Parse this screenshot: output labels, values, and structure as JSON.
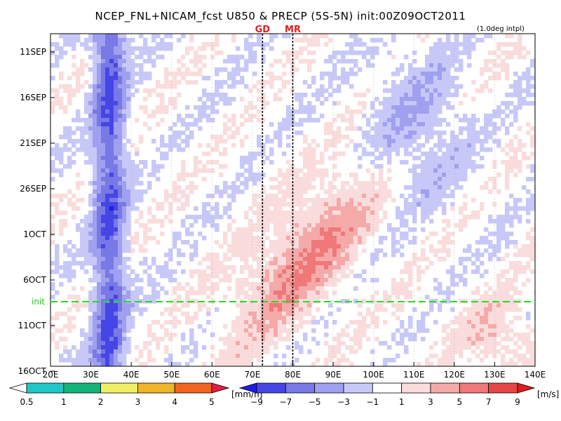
{
  "chart_data": {
    "type": "heatmap",
    "title": "NCEP_FNL+NICAM_fcst U850 & PRECP (5S-5N) init:00Z09OCT2011",
    "note": "(1.0deg intpl)",
    "x_ticks": [
      "20E",
      "30E",
      "40E",
      "50E",
      "60E",
      "70E",
      "80E",
      "90E",
      "100E",
      "110E",
      "120E",
      "130E",
      "140E"
    ],
    "x_range": [
      20,
      140
    ],
    "y_ticks": [
      "11SEP",
      "16SEP",
      "21SEP",
      "26SEP",
      "1OCT",
      "6OCT",
      "11OCT",
      "16OCT"
    ],
    "y_range_days": [
      0,
      35
    ],
    "init_label": "init",
    "init_day": 28,
    "markers": [
      {
        "label": "GD",
        "lon": 72.5
      },
      {
        "label": "MR",
        "lon": 80
      }
    ],
    "precip_colorbar": {
      "levels": [
        "0.5",
        "1",
        "2",
        "3",
        "4",
        "5"
      ],
      "unit": "[mm/h]",
      "colors": [
        "#ffffff",
        "#1ec8c8",
        "#14b478",
        "#f0f064",
        "#f0b428",
        "#f0641e",
        "#e61e46"
      ]
    },
    "wind_colorbar": {
      "levels": [
        "−9",
        "−7",
        "−5",
        "−3",
        "−1",
        "1",
        "3",
        "5",
        "7",
        "9"
      ],
      "unit": "[m/s]",
      "colors": [
        "#1e1ee6",
        "#4646e6",
        "#7878e6",
        "#a0a0f0",
        "#c8c8f8",
        "#ffffff",
        "#fadcdc",
        "#f5aaaa",
        "#f07878",
        "#e64646",
        "#dc1e1e"
      ]
    }
  }
}
